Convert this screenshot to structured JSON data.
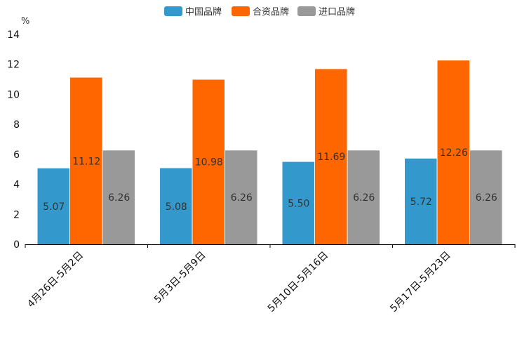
{
  "chart_data": {
    "type": "bar",
    "title": "",
    "xlabel": "",
    "ylabel": "%",
    "ylim": [
      0,
      14
    ],
    "yticks": [
      0,
      2,
      4,
      6,
      8,
      10,
      12,
      14
    ],
    "grid": false,
    "legend_position": "top-center",
    "categories": [
      "4月26日-5月2日",
      "5月3日-5月9日",
      "5月10日-5月16日",
      "5月17日-5月23日"
    ],
    "series": [
      {
        "name": "中国品牌",
        "color": "#3399cc",
        "values": [
          5.07,
          5.08,
          5.5,
          5.72
        ],
        "labels": [
          "5.07",
          "5.08",
          "5.50",
          "5.72"
        ]
      },
      {
        "name": "合资品牌",
        "color": "#ff6600",
        "values": [
          11.12,
          10.98,
          11.69,
          12.26
        ],
        "labels": [
          "11.12",
          "10.98",
          "11.69",
          "12.26"
        ]
      },
      {
        "name": "进口品牌",
        "color": "#999999",
        "values": [
          6.26,
          6.26,
          6.26,
          6.26
        ],
        "labels": [
          "6.26",
          "6.26",
          "6.26",
          "6.26"
        ]
      }
    ]
  }
}
